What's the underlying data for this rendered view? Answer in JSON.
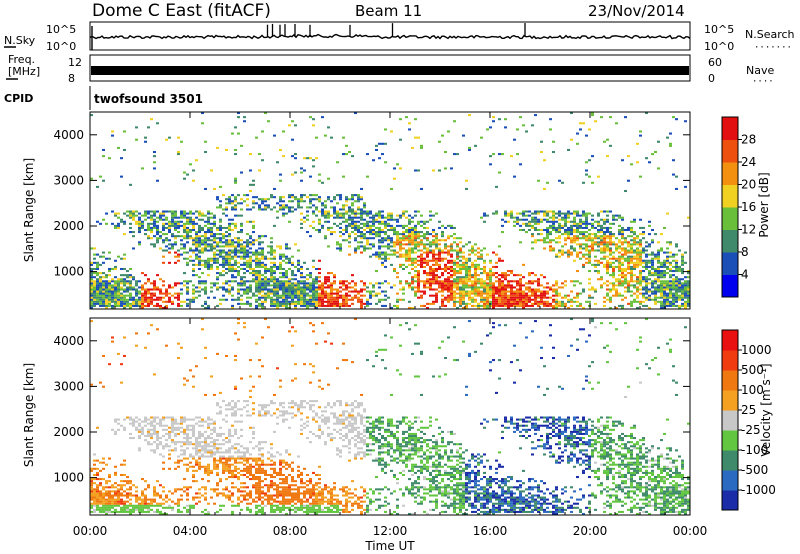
{
  "header": {
    "station": "Dome C East (fitACF)",
    "beam": "Beam 11",
    "date": "23/Nov/2014"
  },
  "noise_panel": {
    "left_label": "N.Sky",
    "right_label": "N.Search",
    "left_ticks": [
      "10^5",
      "10^0"
    ],
    "right_ticks": [
      "10^5",
      "10^0"
    ],
    "right_legend": "·······"
  },
  "freq_panel": {
    "left_label_1": "Freq.",
    "left_label_2": "[MHz]",
    "right_label": "Nave",
    "left_ticks": [
      "12",
      "8"
    ],
    "right_ticks": [
      "60",
      "0"
    ],
    "right_legend": "····"
  },
  "cpid_panel": {
    "label": "CPID",
    "text": "twofsound 3501"
  },
  "power_panel": {
    "ylabel": "Slant Range [km]",
    "yticks": [
      "4000",
      "3000",
      "2000",
      "1000"
    ],
    "colorbar_label": "Power [dB]",
    "colorbar_ticks": [
      "28",
      "24",
      "20",
      "16",
      "12",
      "8",
      "4"
    ]
  },
  "velocity_panel": {
    "ylabel": "Slant Range [km]",
    "yticks": [
      "4000",
      "3000",
      "2000",
      "1000"
    ],
    "colorbar_label": "Velocity [m s⁻¹]",
    "colorbar_ticks": [
      "1000",
      "500",
      "100",
      "25",
      "-25",
      "-100",
      "-500",
      "-1000"
    ]
  },
  "xaxis": {
    "label": "Time UT",
    "ticks": [
      "00:00",
      "04:00",
      "08:00",
      "12:00",
      "16:00",
      "20:00",
      "00:00"
    ]
  },
  "colors": {
    "power_scale": [
      "#0000ee",
      "#1b4fb8",
      "#3f8a6a",
      "#6abf3a",
      "#f0d020",
      "#f39010",
      "#ee5010",
      "#e21010"
    ],
    "velocity_scale": [
      "#1a2ca8",
      "#2a6ac0",
      "#3e8a6a",
      "#63c640",
      "#c8c8c8",
      "#f4a020",
      "#f07810",
      "#f03a10",
      "#e81010"
    ]
  },
  "chart_data": [
    {
      "type": "heatmap",
      "name_panel": "power",
      "x_range_hours": [
        0,
        24
      ],
      "y_range_km": [
        180,
        4500
      ],
      "z_range_db": [
        0,
        32
      ],
      "ylabel": "Slant Range [km]",
      "xlabel": "Time UT",
      "colorbar": "Power [dB]"
    },
    {
      "type": "heatmap",
      "name_panel": "velocity",
      "x_range_hours": [
        0,
        24
      ],
      "y_range_km": [
        180,
        4500
      ],
      "z_range_ms": [
        -1500,
        1500
      ],
      "ylabel": "Slant Range [km]",
      "xlabel": "Time UT",
      "colorbar": "Velocity [m s-1]"
    }
  ]
}
